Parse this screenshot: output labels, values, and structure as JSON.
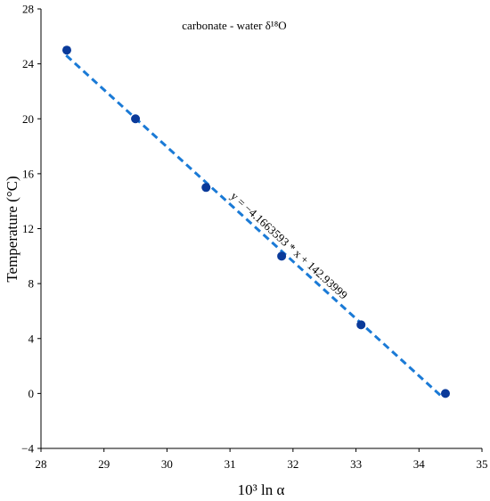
{
  "chart_data": {
    "type": "scatter",
    "title": "carbonate - water δ¹⁸O",
    "xlabel": "10³ ln α",
    "ylabel": "Temperature (°C)",
    "xlim": [
      28,
      35
    ],
    "ylim": [
      -4,
      28
    ],
    "xticks": [
      28,
      29,
      30,
      31,
      32,
      33,
      34,
      35
    ],
    "yticks": [
      -4,
      0,
      4,
      8,
      12,
      16,
      20,
      24,
      28
    ],
    "ytick_labels": [
      "−4",
      "0",
      "4",
      "8",
      "12",
      "16",
      "20",
      "24",
      "28"
    ],
    "grid": false,
    "legend": "none",
    "series": [
      {
        "x": [
          28.41,
          29.5,
          30.62,
          31.82,
          33.08,
          34.42
        ],
        "y": [
          25,
          20,
          15,
          10,
          5,
          0
        ]
      }
    ],
    "trendline": {
      "slope": -4.1663593,
      "intercept": 142.93999,
      "x_range": [
        28.4,
        34.35
      ],
      "equation_label": "y = −4.1663593 * x + 142.93999"
    },
    "colors": {
      "marker": "#0a3a9a",
      "trendline": "#1a7ad6",
      "axis": "#000000"
    }
  }
}
